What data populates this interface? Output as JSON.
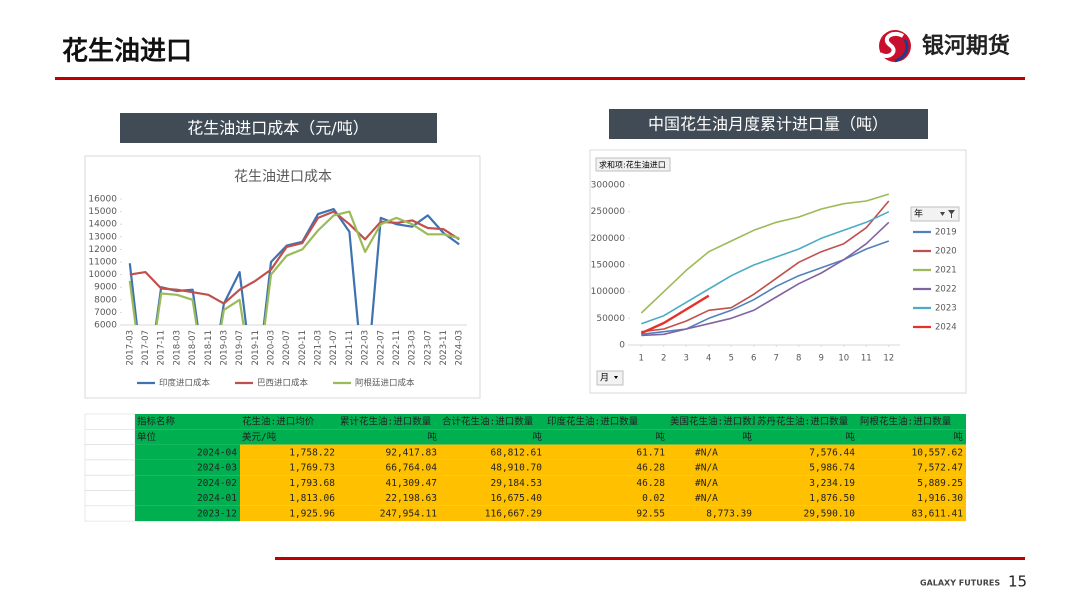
{
  "header": {
    "title": "花生油进口",
    "logo": "银河期货"
  },
  "chart_data": [
    {
      "type": "line",
      "heading": "花生油进口成本（元/吨）",
      "title": "花生油进口成本",
      "categories": [
        "2017-03",
        "2017-07",
        "2017-11",
        "2018-03",
        "2018-07",
        "2018-11",
        "2019-03",
        "2019-07",
        "2019-11",
        "2020-03",
        "2020-07",
        "2020-11",
        "2021-03",
        "2021-07",
        "2021-11",
        "2022-03",
        "2022-07",
        "2022-11",
        "2023-03",
        "2023-07",
        "2023-11",
        "2024-03"
      ],
      "series": [
        {
          "name": "印度进口成本",
          "color": "#3f72b0",
          "values": [
            10900,
            0,
            9000,
            8700,
            8800,
            0,
            7700,
            10200,
            0,
            11000,
            12300,
            12600,
            14800,
            15200,
            13400,
            0,
            14500,
            14000,
            13800,
            14700,
            13300,
            12400
          ]
        },
        {
          "name": "巴西进口成本",
          "color": "#c0504d",
          "values": [
            10000,
            10200,
            8900,
            8800,
            8600,
            8400,
            7700,
            8800,
            9500,
            10400,
            12200,
            12500,
            14500,
            15000,
            14000,
            12800,
            14200,
            14100,
            14300,
            13700,
            13600,
            12800
          ]
        },
        {
          "name": "阿根廷进口成本",
          "color": "#9bbb59",
          "values": [
            9500,
            0,
            8500,
            8400,
            8000,
            0,
            7200,
            8000,
            0,
            10000,
            11500,
            12000,
            13500,
            14700,
            15000,
            11800,
            14000,
            14500,
            14000,
            13200,
            13200,
            12900
          ]
        }
      ],
      "ylim": [
        6000,
        16000
      ],
      "yticks": [
        6000,
        7000,
        8000,
        9000,
        10000,
        11000,
        12000,
        13000,
        14000,
        15000,
        16000
      ],
      "grid": false,
      "legend": "bottom"
    },
    {
      "type": "line",
      "heading": "中国花生油月度累计进口量（吨）",
      "subtitle": "求和项:花生油进口",
      "xlabel": "月",
      "legend_title": "年",
      "x": [
        1,
        2,
        3,
        4,
        5,
        6,
        7,
        8,
        9,
        10,
        11,
        12
      ],
      "xlim": [
        0.5,
        12.5
      ],
      "xticks": [
        1,
        2,
        3,
        4,
        5,
        6,
        7,
        8,
        9,
        10,
        11,
        12
      ],
      "series": [
        {
          "name": "2019",
          "color": "#4f81bd",
          "values": [
            20000,
            25000,
            30000,
            50000,
            65000,
            85000,
            110000,
            130000,
            145000,
            160000,
            180000,
            195000
          ]
        },
        {
          "name": "2020",
          "color": "#c0504d",
          "values": [
            25000,
            30000,
            45000,
            65000,
            70000,
            95000,
            125000,
            155000,
            175000,
            190000,
            220000,
            270000
          ]
        },
        {
          "name": "2021",
          "color": "#9bbb59",
          "values": [
            60000,
            100000,
            140000,
            175000,
            195000,
            215000,
            230000,
            240000,
            255000,
            265000,
            270000,
            283000
          ]
        },
        {
          "name": "2022",
          "color": "#8064a2",
          "values": [
            18000,
            20000,
            30000,
            40000,
            50000,
            65000,
            90000,
            115000,
            135000,
            160000,
            190000,
            230000
          ]
        },
        {
          "name": "2023",
          "color": "#4bacc6",
          "values": [
            40000,
            55000,
            80000,
            105000,
            130000,
            150000,
            165000,
            180000,
            200000,
            215000,
            230000,
            250000
          ]
        },
        {
          "name": "2024",
          "color": "#e8302b",
          "values": [
            22198.63,
            41309.47,
            66764.04,
            92417.83,
            null,
            null,
            null,
            null,
            null,
            null,
            null,
            null
          ]
        }
      ],
      "ylim": [
        0,
        300000
      ],
      "yticks": [
        0,
        50000,
        100000,
        150000,
        200000,
        250000,
        300000
      ],
      "grid": false,
      "legend": "right"
    }
  ],
  "table": {
    "header": [
      "指标名称",
      "花生油:进口均价",
      "累计花生油:进口数量",
      "合计花生油:进口数量",
      "印度花生油:进口数量",
      "美国花生油:进口数量",
      "苏丹花生油:进口数量",
      "阿根花生油:进口数量"
    ],
    "units": [
      "单位",
      "美元/吨",
      "吨",
      "吨",
      "吨",
      "吨",
      "吨",
      "吨"
    ],
    "rows": [
      [
        "2024-04",
        "1,758.22",
        "92,417.83",
        "68,812.61",
        "61.71",
        "#N/A",
        "7,576.44",
        "10,557.62"
      ],
      [
        "2024-03",
        "1,769.73",
        "66,764.04",
        "48,910.70",
        "46.28",
        "#N/A",
        "5,986.74",
        "7,572.47"
      ],
      [
        "2024-02",
        "1,793.68",
        "41,309.47",
        "29,184.53",
        "46.28",
        "#N/A",
        "3,234.19",
        "5,889.25"
      ],
      [
        "2024-01",
        "1,813.06",
        "22,198.63",
        "16,675.40",
        "0.02",
        "#N/A",
        "1,876.50",
        "1,916.30"
      ],
      [
        "2023-12",
        "1,925.96",
        "247,954.11",
        "116,667.29",
        "92.55",
        "8,773.39",
        "29,590.10",
        "83,611.41"
      ]
    ]
  },
  "footer": {
    "brand": "GALAXY FUTURES",
    "page": "15"
  }
}
